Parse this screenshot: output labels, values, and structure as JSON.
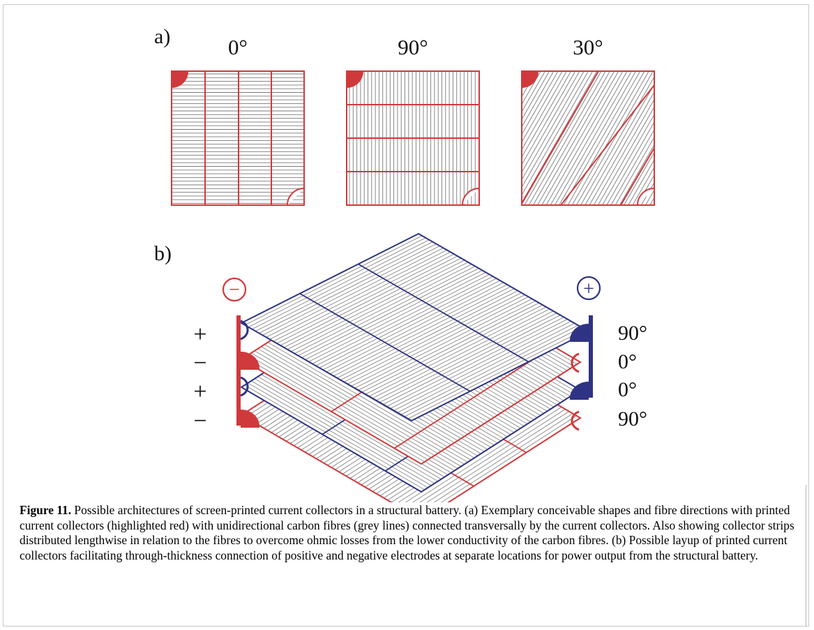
{
  "figure": {
    "panel_a": {
      "label": "a)",
      "tiles": [
        {
          "angle_label": "0°",
          "fibre_direction": "horizontal",
          "collectors": "vertical"
        },
        {
          "angle_label": "90°",
          "fibre_direction": "vertical",
          "collectors": "horizontal"
        },
        {
          "angle_label": "30°",
          "fibre_direction": "diagonal",
          "collectors": "diagonal"
        }
      ]
    },
    "panel_b": {
      "label": "b)",
      "negative_terminal": "−",
      "positive_terminal": "+",
      "layer_polarity": [
        "+",
        "−",
        "+",
        "−"
      ],
      "layer_angles": [
        "90°",
        "0°",
        "0°",
        "90°"
      ]
    },
    "colors": {
      "collector_red": "#d0393b",
      "collector_blue": "#2e3384",
      "fibre_grey": "#7a7a7a"
    }
  },
  "caption": {
    "label": "Figure 11.",
    "text": " Possible architectures of screen-printed current collectors in a structural battery. (a) Exemplary conceivable shapes and fibre directions with printed current collectors (highlighted red) with unidirectional carbon fibres (grey lines) connected transversally by the current collectors. Also showing collector strips distributed lengthwise in relation to the fibres to overcome ohmic losses from the lower conductivity of the carbon fibres. (b) Possible layup of printed current collectors facilitating through-thickness connection of positive and negative electrodes at separate locations for power output from the structural battery."
  }
}
